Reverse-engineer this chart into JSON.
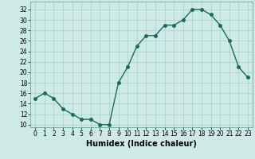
{
  "x": [
    0,
    1,
    2,
    3,
    4,
    5,
    6,
    7,
    8,
    9,
    10,
    11,
    12,
    13,
    14,
    15,
    16,
    17,
    18,
    19,
    20,
    21,
    22,
    23
  ],
  "y": [
    15,
    16,
    15,
    13,
    12,
    11,
    11,
    10,
    10,
    18,
    21,
    25,
    27,
    27,
    29,
    29,
    30,
    32,
    32,
    31,
    29,
    26,
    21,
    19
  ],
  "line_color": "#1a6b5a",
  "marker_color": "#1a6b5a",
  "bg_color": "#cdeae7",
  "grid_color": "#a8ceca",
  "xlabel": "Humidex (Indice chaleur)",
  "xlim": [
    -0.5,
    23.5
  ],
  "ylim": [
    9.5,
    33.5
  ],
  "yticks": [
    10,
    12,
    14,
    16,
    18,
    20,
    22,
    24,
    26,
    28,
    30,
    32
  ],
  "xticks": [
    0,
    1,
    2,
    3,
    4,
    5,
    6,
    7,
    8,
    9,
    10,
    11,
    12,
    13,
    14,
    15,
    16,
    17,
    18,
    19,
    20,
    21,
    22,
    23
  ],
  "xlabel_fontsize": 7,
  "tick_fontsize": 5.5,
  "marker_size": 2.5,
  "line_width": 1.0
}
